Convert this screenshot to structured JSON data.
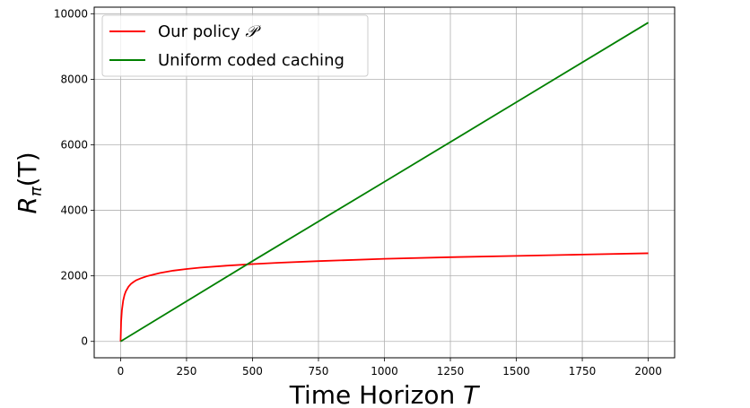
{
  "chart_data": {
    "type": "line",
    "title": "",
    "xlabel": "Time Horizon T",
    "xlabel_main": "Time Horizon ",
    "xlabel_var": "T",
    "ylabel": "R_π(T)",
    "ylabel_base": "R",
    "ylabel_sub": "π",
    "ylabel_arg": "(T)",
    "xlim": [
      -100,
      2100
    ],
    "ylim": [
      -500,
      10200
    ],
    "xticks": [
      0,
      250,
      500,
      750,
      1000,
      1250,
      1500,
      1750,
      2000
    ],
    "yticks": [
      0,
      2000,
      4000,
      6000,
      8000,
      10000
    ],
    "grid": true,
    "legend_position": "top-left",
    "series": [
      {
        "name": "Our policy 𝒫",
        "label_main": "Our policy ",
        "label_symbol": "𝒫",
        "color": "#ff0000",
        "x": [
          0,
          2,
          5,
          10,
          15,
          20,
          30,
          40,
          50,
          60,
          75,
          100,
          150,
          200,
          250,
          300,
          400,
          500,
          600,
          750,
          1000,
          1250,
          1500,
          1750,
          2000
        ],
        "y": [
          0,
          600,
          950,
          1250,
          1420,
          1530,
          1670,
          1760,
          1820,
          1870,
          1920,
          1990,
          2090,
          2160,
          2210,
          2250,
          2310,
          2360,
          2400,
          2450,
          2520,
          2570,
          2610,
          2650,
          2690
        ]
      },
      {
        "name": "Uniform coded caching",
        "color": "#008000",
        "x": [
          0,
          500,
          1000,
          1500,
          2000
        ],
        "y": [
          0,
          2450,
          4870,
          7300,
          9730
        ]
      }
    ]
  }
}
